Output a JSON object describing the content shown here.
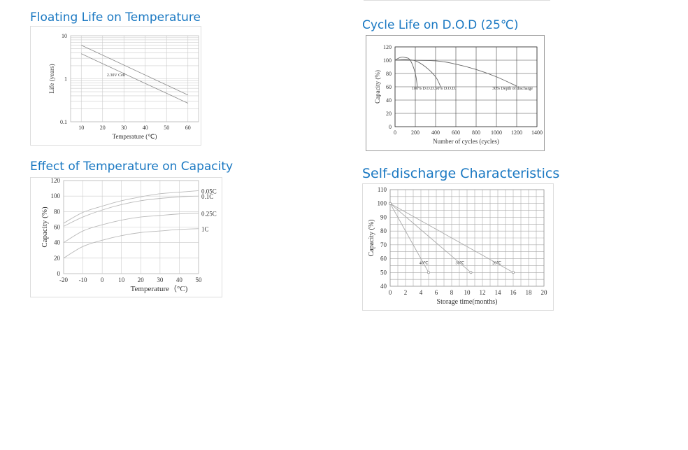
{
  "page": {
    "titles": {
      "floating": "Floating Life on Temperature",
      "cycle": "Cycle Life on D.O.D (25℃)",
      "temp_capacity": "Effect of Temperature on Capacity",
      "self_discharge": "Self-discharge Characteristics"
    }
  },
  "chart_data": [
    {
      "id": "floating",
      "type": "area",
      "xlabel": "Temperature (℃)",
      "ylabel": "Life (years)",
      "xlim": [
        5,
        65
      ],
      "ylim": [
        0.1,
        10
      ],
      "yscale": "log",
      "xticks": [
        10,
        20,
        30,
        40,
        50,
        60
      ],
      "yticks": [
        0.1,
        1,
        10
      ],
      "ytick_labels": [
        "0.1",
        "1",
        "10"
      ],
      "grid": true,
      "annotation": "2.30V Cell",
      "band": {
        "x": [
          10,
          60
        ],
        "upper": [
          6.0,
          0.42
        ],
        "lower": [
          3.8,
          0.27
        ]
      }
    },
    {
      "id": "cycle",
      "type": "line",
      "xlabel": "Number of cycles (cycles)",
      "ylabel": "Capacity (%)",
      "xlim": [
        0,
        1400
      ],
      "ylim": [
        0,
        120
      ],
      "xticks": [
        0,
        200,
        400,
        600,
        800,
        1000,
        1200,
        1400
      ],
      "yticks": [
        0,
        20,
        40,
        60,
        80,
        100,
        120
      ],
      "grid": true,
      "series": [
        {
          "name": "100% D.O.D.",
          "x": [
            0,
            50,
            100,
            150,
            200,
            220
          ],
          "y": [
            100,
            104,
            104,
            100,
            80,
            60
          ]
        },
        {
          "name": "50% D.O.D.",
          "x": [
            0,
            100,
            200,
            300,
            400,
            450
          ],
          "y": [
            100,
            101,
            99,
            90,
            75,
            60
          ]
        },
        {
          "name": "30% Depth of  discharge",
          "x": [
            0,
            400,
            600,
            800,
            1000,
            1200
          ],
          "y": [
            100,
            99,
            94,
            86,
            75,
            61
          ]
        }
      ]
    },
    {
      "id": "temp_capacity",
      "type": "line",
      "xlabel": "Temperature（°C)",
      "ylabel": "Capacity (%)",
      "xlim": [
        -20,
        50
      ],
      "ylim": [
        0,
        120
      ],
      "xticks": [
        -20,
        -10,
        0,
        10,
        20,
        30,
        40,
        50
      ],
      "yticks": [
        0,
        20,
        40,
        60,
        80,
        100,
        120
      ],
      "grid": true,
      "x": [
        -20,
        -10,
        0,
        10,
        20,
        30,
        40,
        50
      ],
      "series": [
        {
          "name": "0.05C",
          "values": [
            65,
            79,
            87,
            94,
            99,
            103,
            105,
            107
          ]
        },
        {
          "name": "0.1C",
          "values": [
            61,
            73,
            82,
            89,
            94,
            97,
            99,
            100
          ]
        },
        {
          "name": "0.25C",
          "values": [
            40,
            55,
            63,
            69,
            73,
            75,
            77,
            78
          ]
        },
        {
          "name": "1C",
          "values": [
            20,
            35,
            43,
            49,
            53,
            55,
            57,
            58
          ]
        }
      ]
    },
    {
      "id": "self_discharge",
      "type": "line",
      "xlabel": "Storage time(months)",
      "ylabel": "Capacity (%)",
      "xlim": [
        0,
        20
      ],
      "ylim": [
        40,
        110
      ],
      "xticks": [
        0,
        2,
        4,
        6,
        8,
        10,
        12,
        14,
        16,
        18,
        20
      ],
      "yticks": [
        40,
        50,
        60,
        70,
        80,
        90,
        100,
        110
      ],
      "grid": true,
      "series": [
        {
          "name": "40℃",
          "x": [
            0,
            5
          ],
          "y": [
            100,
            50
          ]
        },
        {
          "name": "30℃",
          "x": [
            0,
            10.5
          ],
          "y": [
            100,
            50
          ]
        },
        {
          "name": "20℃",
          "x": [
            0,
            16
          ],
          "y": [
            100,
            50
          ]
        }
      ]
    }
  ]
}
